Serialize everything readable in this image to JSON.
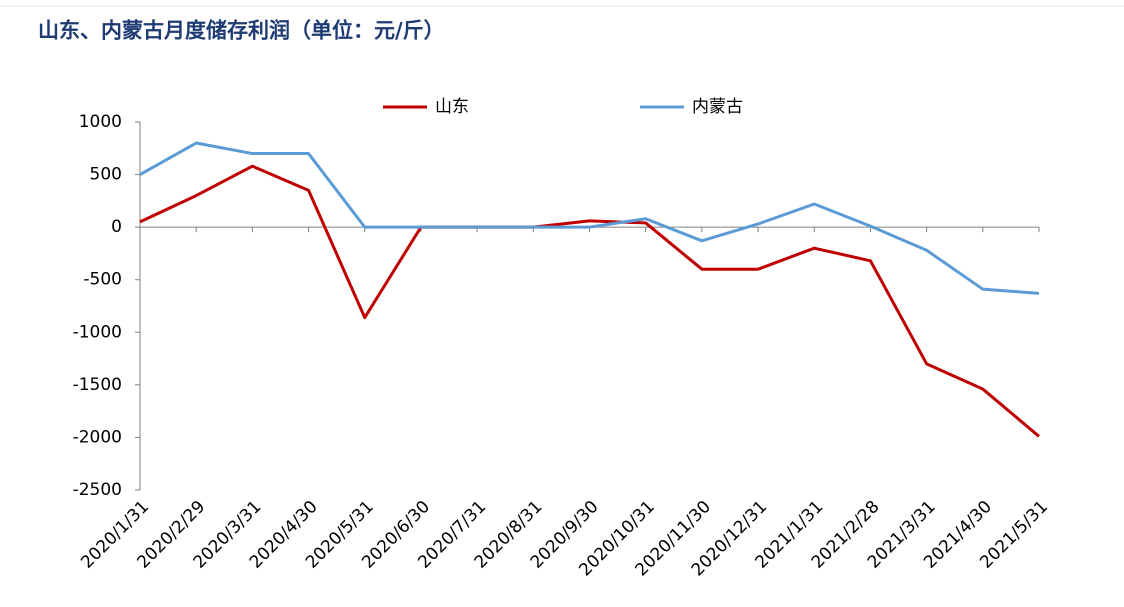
{
  "chart_data": {
    "type": "line",
    "title": "山东、内蒙古月度储存利润（单位：元/斤）",
    "categories": [
      "2020/1/31",
      "2020/2/29",
      "2020/3/31",
      "2020/4/30",
      "2020/5/31",
      "2020/6/30",
      "2020/7/31",
      "2020/8/31",
      "2020/9/30",
      "2020/10/31",
      "2020/11/30",
      "2020/12/31",
      "2021/1/31",
      "2021/2/28",
      "2021/3/31",
      "2021/4/30",
      "2021/5/31"
    ],
    "series": [
      {
        "name": "山东",
        "color": "#c00000",
        "values": [
          50,
          300,
          580,
          350,
          -860,
          0,
          0,
          0,
          60,
          40,
          -400,
          -400,
          -200,
          -320,
          -1300,
          -1540,
          -1990
        ]
      },
      {
        "name": "内蒙古",
        "color": "#5b9bd5",
        "values": [
          500,
          800,
          700,
          700,
          0,
          0,
          0,
          0,
          0,
          80,
          -130,
          30,
          220,
          10,
          -220,
          -590,
          -630
        ]
      }
    ],
    "ylim": [
      -2500,
      1000
    ],
    "yticks": [
      -2500,
      -2000,
      -1500,
      -1000,
      -500,
      0,
      500,
      1000
    ],
    "legend": "top"
  }
}
